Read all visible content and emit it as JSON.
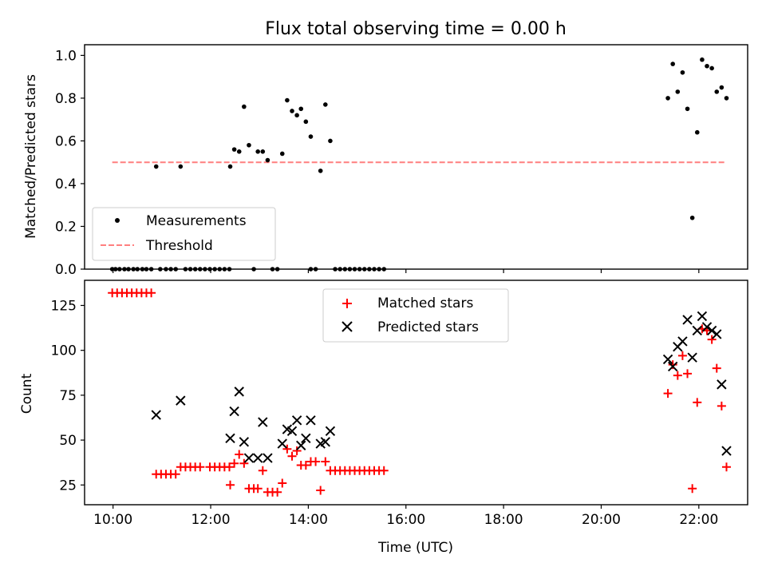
{
  "title": "Flux total observing time = 0.00 h",
  "xlabel": "Time (UTC)",
  "chart_data": [
    {
      "type": "scatter",
      "ylabel": "Matched/Predicted stars",
      "ylim": [
        0,
        1.05
      ],
      "xlim": [
        "09:25",
        "23:00"
      ],
      "yticks": [
        "0.0",
        "0.2",
        "0.4",
        "0.6",
        "0.8",
        "1.0"
      ],
      "grid": false,
      "legend_position": "lower-left",
      "series": [
        {
          "name": "Measurements",
          "color": "#000000",
          "points": [
            [
              "09:59",
              0
            ],
            [
              "10:03",
              0
            ],
            [
              "10:08",
              0
            ],
            [
              "10:14",
              0
            ],
            [
              "10:19",
              0
            ],
            [
              "10:25",
              0
            ],
            [
              "10:30",
              0
            ],
            [
              "10:36",
              0
            ],
            [
              "10:41",
              0
            ],
            [
              "10:47",
              0
            ],
            [
              "10:53",
              0.48
            ],
            [
              "10:58",
              0
            ],
            [
              "11:05",
              0
            ],
            [
              "11:11",
              0
            ],
            [
              "11:17",
              0
            ],
            [
              "11:23",
              0.48
            ],
            [
              "11:29",
              0
            ],
            [
              "11:35",
              0
            ],
            [
              "11:41",
              0
            ],
            [
              "11:47",
              0
            ],
            [
              "11:53",
              0
            ],
            [
              "11:59",
              0
            ],
            [
              "12:05",
              0
            ],
            [
              "12:11",
              0
            ],
            [
              "12:17",
              0
            ],
            [
              "12:23",
              0
            ],
            [
              "12:24",
              0.48
            ],
            [
              "12:29",
              0.56
            ],
            [
              "12:35",
              0.55
            ],
            [
              "12:41",
              0.76
            ],
            [
              "12:47",
              0.58
            ],
            [
              "12:53",
              0
            ],
            [
              "12:58",
              0.55
            ],
            [
              "13:04",
              0.55
            ],
            [
              "13:10",
              0.51
            ],
            [
              "13:16",
              0
            ],
            [
              "13:22",
              0
            ],
            [
              "13:28",
              0.54
            ],
            [
              "13:34",
              0.79
            ],
            [
              "13:40",
              0.74
            ],
            [
              "13:46",
              0.72
            ],
            [
              "13:51",
              0.75
            ],
            [
              "13:57",
              0.69
            ],
            [
              "14:03",
              0.62
            ],
            [
              "14:03",
              0
            ],
            [
              "14:09",
              0
            ],
            [
              "14:15",
              0.46
            ],
            [
              "14:21",
              0.77
            ],
            [
              "14:27",
              0.6
            ],
            [
              "14:33",
              0
            ],
            [
              "14:39",
              0
            ],
            [
              "14:45",
              0
            ],
            [
              "14:51",
              0
            ],
            [
              "14:57",
              0
            ],
            [
              "15:03",
              0
            ],
            [
              "15:09",
              0
            ],
            [
              "15:15",
              0
            ],
            [
              "15:21",
              0
            ],
            [
              "15:27",
              0
            ],
            [
              "15:33",
              0
            ],
            [
              "21:22",
              0.8
            ],
            [
              "21:28",
              0.96
            ],
            [
              "21:34",
              0.83
            ],
            [
              "21:40",
              0.92
            ],
            [
              "21:46",
              0.75
            ],
            [
              "21:52",
              0.24
            ],
            [
              "21:58",
              0.64
            ],
            [
              "22:04",
              0.98
            ],
            [
              "22:10",
              0.95
            ],
            [
              "22:16",
              0.94
            ],
            [
              "22:22",
              0.83
            ],
            [
              "22:28",
              0.85
            ],
            [
              "22:34",
              0.8
            ]
          ]
        },
        {
          "name": "Threshold",
          "color": "#ff7f7f",
          "style": "dashed",
          "points": [
            [
              "09:59",
              0.5
            ],
            [
              "22:34",
              0.5
            ]
          ]
        }
      ]
    },
    {
      "type": "scatter",
      "ylabel": "Count",
      "ylim": [
        14,
        139
      ],
      "xlim": [
        "09:25",
        "23:00"
      ],
      "xticks": [
        "10:00",
        "12:00",
        "14:00",
        "16:00",
        "18:00",
        "20:00",
        "22:00"
      ],
      "yticks": [
        "25",
        "50",
        "75",
        "100",
        "125"
      ],
      "grid": false,
      "legend_position": "top-center",
      "series": [
        {
          "name": "Matched stars",
          "marker": "plus",
          "color": "#ff0000",
          "points": [
            [
              "09:59",
              132
            ],
            [
              "10:05",
              132
            ],
            [
              "10:11",
              132
            ],
            [
              "10:17",
              132
            ],
            [
              "10:23",
              132
            ],
            [
              "10:29",
              132
            ],
            [
              "10:35",
              132
            ],
            [
              "10:41",
              132
            ],
            [
              "10:47",
              132
            ],
            [
              "10:53",
              31
            ],
            [
              "10:59",
              31
            ],
            [
              "11:05",
              31
            ],
            [
              "11:11",
              31
            ],
            [
              "11:17",
              31
            ],
            [
              "11:23",
              35
            ],
            [
              "11:29",
              35
            ],
            [
              "11:35",
              35
            ],
            [
              "11:41",
              35
            ],
            [
              "11:47",
              35
            ],
            [
              "11:59",
              35
            ],
            [
              "12:05",
              35
            ],
            [
              "12:11",
              35
            ],
            [
              "12:17",
              35
            ],
            [
              "12:23",
              35
            ],
            [
              "12:24",
              25
            ],
            [
              "12:29",
              37
            ],
            [
              "12:35",
              42
            ],
            [
              "12:41",
              37
            ],
            [
              "12:47",
              23
            ],
            [
              "12:53",
              23
            ],
            [
              "12:58",
              23
            ],
            [
              "13:04",
              33
            ],
            [
              "13:10",
              21
            ],
            [
              "13:16",
              21
            ],
            [
              "13:22",
              21
            ],
            [
              "13:28",
              26
            ],
            [
              "13:34",
              45
            ],
            [
              "13:40",
              41
            ],
            [
              "13:46",
              44
            ],
            [
              "13:51",
              36
            ],
            [
              "13:57",
              36
            ],
            [
              "14:03",
              38
            ],
            [
              "14:09",
              38
            ],
            [
              "14:15",
              22
            ],
            [
              "14:21",
              38
            ],
            [
              "14:27",
              33
            ],
            [
              "14:33",
              33
            ],
            [
              "14:39",
              33
            ],
            [
              "14:45",
              33
            ],
            [
              "14:51",
              33
            ],
            [
              "14:57",
              33
            ],
            [
              "15:03",
              33
            ],
            [
              "15:09",
              33
            ],
            [
              "15:15",
              33
            ],
            [
              "15:21",
              33
            ],
            [
              "15:27",
              33
            ],
            [
              "15:33",
              33
            ],
            [
              "21:22",
              76
            ],
            [
              "21:28",
              92
            ],
            [
              "21:34",
              86
            ],
            [
              "21:40",
              97
            ],
            [
              "21:46",
              87
            ],
            [
              "21:52",
              23
            ],
            [
              "21:58",
              71
            ],
            [
              "22:04",
              112
            ],
            [
              "22:10",
              111
            ],
            [
              "22:16",
              106
            ],
            [
              "22:22",
              90
            ],
            [
              "22:28",
              69
            ],
            [
              "22:34",
              35
            ]
          ]
        },
        {
          "name": "Predicted stars",
          "marker": "x",
          "color": "#000000",
          "points": [
            [
              "10:53",
              64
            ],
            [
              "11:23",
              72
            ],
            [
              "12:24",
              51
            ],
            [
              "12:29",
              66
            ],
            [
              "12:35",
              77
            ],
            [
              "12:41",
              49
            ],
            [
              "12:47",
              40
            ],
            [
              "12:58",
              40
            ],
            [
              "13:04",
              60
            ],
            [
              "13:10",
              40
            ],
            [
              "13:28",
              48
            ],
            [
              "13:34",
              56
            ],
            [
              "13:40",
              55
            ],
            [
              "13:46",
              61
            ],
            [
              "13:51",
              47
            ],
            [
              "13:57",
              51
            ],
            [
              "14:03",
              61
            ],
            [
              "14:15",
              48
            ],
            [
              "14:21",
              49
            ],
            [
              "14:27",
              55
            ],
            [
              "21:22",
              95
            ],
            [
              "21:28",
              91
            ],
            [
              "21:34",
              102
            ],
            [
              "21:40",
              105
            ],
            [
              "21:46",
              117
            ],
            [
              "21:52",
              96
            ],
            [
              "21:58",
              111
            ],
            [
              "22:04",
              119
            ],
            [
              "22:10",
              113
            ],
            [
              "22:16",
              111
            ],
            [
              "22:22",
              109
            ],
            [
              "22:28",
              81
            ],
            [
              "22:34",
              44
            ]
          ]
        }
      ]
    }
  ]
}
